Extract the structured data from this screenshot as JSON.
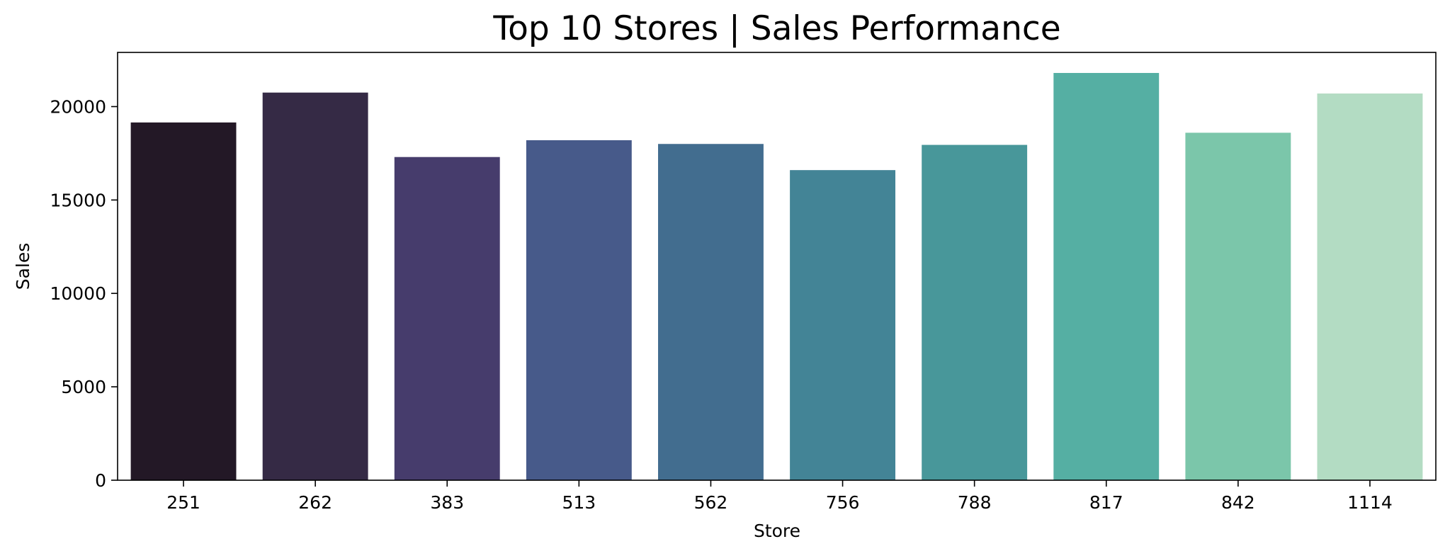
{
  "chart_data": {
    "type": "bar",
    "title": "Top 10 Stores | Sales Performance",
    "xlabel": "Store",
    "ylabel": "Sales",
    "categories": [
      "251",
      "262",
      "383",
      "513",
      "562",
      "756",
      "788",
      "817",
      "842",
      "1114"
    ],
    "values": [
      19150,
      20750,
      17300,
      18200,
      18000,
      16600,
      17950,
      21800,
      18600,
      20700
    ],
    "colors": [
      "#231826",
      "#352a45",
      "#463c6c",
      "#475a8a",
      "#426d8f",
      "#438496",
      "#48979a",
      "#55afa3",
      "#7bc6aa",
      "#b3dcc3"
    ],
    "ylim": [
      0,
      22900
    ],
    "yticks": [
      0,
      5000,
      10000,
      15000,
      20000
    ],
    "grid": false,
    "legend": "none"
  }
}
